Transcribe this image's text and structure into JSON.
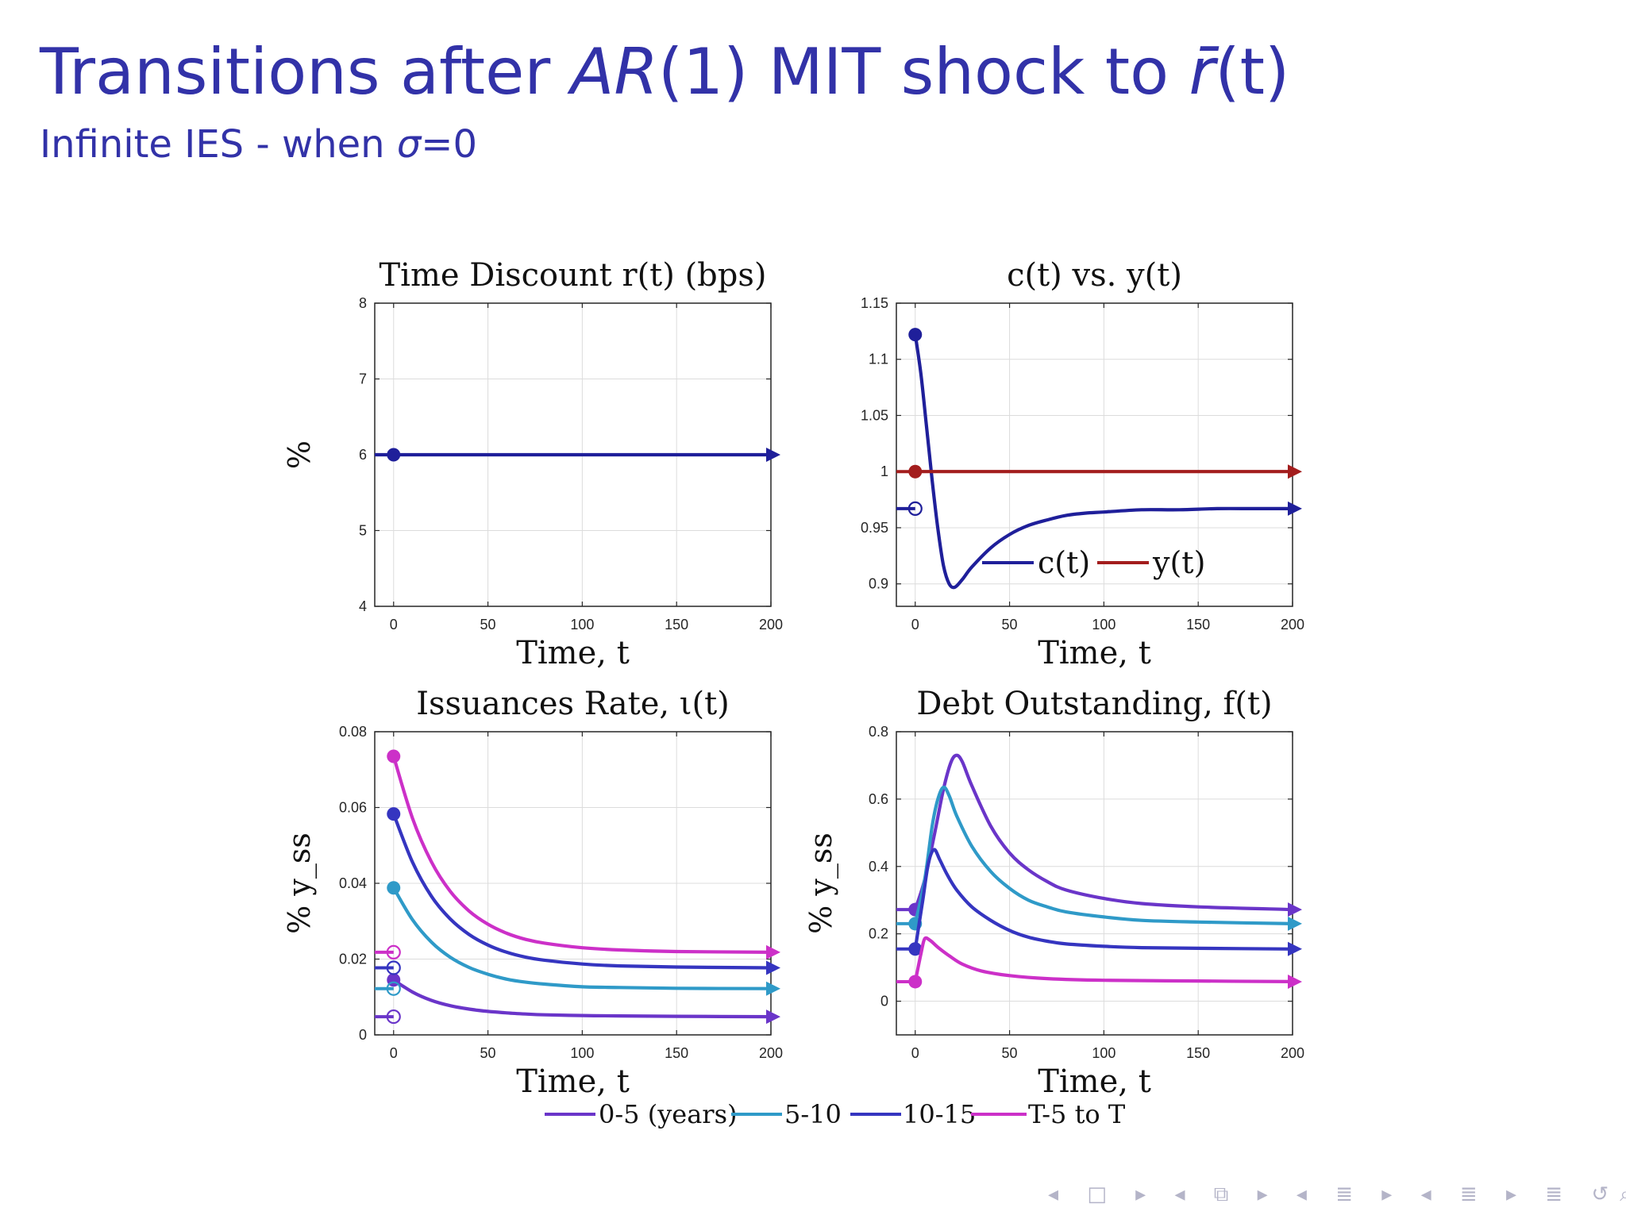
{
  "slide": {
    "title_pre": "Transitions after ",
    "title_ar": "AR",
    "title_mid": "(1) MIT shock to ",
    "title_r": "r̄",
    "title_t": "(t)",
    "subtitle_pre": "Infinite IES - when ",
    "subtitle_sigma": "σ",
    "subtitle_post": "=0",
    "nav_symbols": "◂ □ ▸ ◂ ⧉ ▸ ◂ ≣ ▸ ◂ ≣ ▸  ≣  ↺⌕↻"
  },
  "colors": {
    "title": "#3232a8",
    "navy": "#1f1f9a",
    "red": "#a31d1d",
    "purple": "#6a35c9",
    "cyan": "#2f9ac8",
    "blue": "#3535c0",
    "magenta": "#cc30c8",
    "grid": "#dcdcdc"
  },
  "chart_data": [
    {
      "type": "line",
      "title": "Time Discount r(t) (bps)",
      "xlabel": "Time, t",
      "ylabel": "%",
      "xlim": [
        -10,
        200
      ],
      "ylim": [
        4,
        8
      ],
      "xticks": [
        0,
        50,
        100,
        150,
        200
      ],
      "yticks": [
        4,
        5,
        6,
        7,
        8
      ],
      "grid": true,
      "series": [
        {
          "color_key": "navy",
          "x": [
            -10,
            200
          ],
          "y": [
            6,
            6
          ],
          "start_point": [
            0,
            6
          ],
          "pre_value": 6
        }
      ]
    },
    {
      "type": "line",
      "title": "c(t) vs. y(t)",
      "xlabel": "Time, t",
      "ylabel": "",
      "xlim": [
        -10,
        200
      ],
      "ylim": [
        0.88,
        1.15
      ],
      "xticks": [
        0,
        50,
        100,
        150,
        200
      ],
      "yticks": [
        0.9,
        0.95,
        1,
        1.05,
        1.1,
        1.15
      ],
      "grid": true,
      "legend": {
        "placement": "bottom-right",
        "entries": [
          "c(t)",
          "y(t)"
        ]
      },
      "series": [
        {
          "name": "c(t)",
          "color_key": "navy",
          "pre_value": 0.967,
          "start_point": [
            0,
            1.122
          ],
          "x": [
            0,
            3,
            6,
            9,
            12,
            15,
            18,
            21,
            25,
            30,
            40,
            50,
            60,
            70,
            80,
            90,
            100,
            120,
            140,
            160,
            180,
            200
          ],
          "y": [
            1.122,
            1.087,
            1.04,
            0.992,
            0.949,
            0.916,
            0.9,
            0.897,
            0.904,
            0.915,
            0.932,
            0.944,
            0.952,
            0.957,
            0.961,
            0.963,
            0.964,
            0.966,
            0.966,
            0.967,
            0.967,
            0.967
          ]
        },
        {
          "name": "y(t)",
          "color_key": "red",
          "pre_value": 1,
          "start_point": [
            0,
            1
          ],
          "x": [
            0,
            200
          ],
          "y": [
            1,
            1
          ]
        }
      ]
    },
    {
      "type": "line",
      "title": "Issuances Rate, ι(t)",
      "xlabel": "Time, t",
      "ylabel": "% y_ss",
      "xlim": [
        -10,
        200
      ],
      "ylim": [
        0,
        0.08
      ],
      "xticks": [
        0,
        50,
        100,
        150,
        200
      ],
      "yticks": [
        0,
        0.02,
        0.04,
        0.06,
        0.08
      ],
      "grid": true,
      "series": [
        {
          "name": "0-5 (years)",
          "color_key": "purple",
          "pre_value": 0.0048,
          "start_point": [
            0,
            0.0145
          ],
          "x": [
            0,
            10,
            20,
            30,
            40,
            50,
            60,
            70,
            80,
            100,
            120,
            150,
            200
          ],
          "y": [
            0.0145,
            0.0113,
            0.0091,
            0.0077,
            0.0068,
            0.0062,
            0.0058,
            0.0055,
            0.0053,
            0.0051,
            0.005,
            0.0049,
            0.0048
          ]
        },
        {
          "name": "5-10",
          "color_key": "cyan",
          "pre_value": 0.0122,
          "start_point": [
            0,
            0.0388
          ],
          "x": [
            0,
            10,
            20,
            30,
            40,
            50,
            60,
            70,
            80,
            100,
            120,
            150,
            200
          ],
          "y": [
            0.0388,
            0.0304,
            0.0245,
            0.0205,
            0.0178,
            0.016,
            0.0147,
            0.0139,
            0.0134,
            0.0127,
            0.0125,
            0.0123,
            0.0122
          ]
        },
        {
          "name": "10-15",
          "color_key": "blue",
          "pre_value": 0.0177,
          "start_point": [
            0,
            0.0583
          ],
          "x": [
            0,
            10,
            20,
            30,
            40,
            50,
            60,
            70,
            80,
            100,
            120,
            150,
            200
          ],
          "y": [
            0.0583,
            0.0456,
            0.0366,
            0.0306,
            0.0265,
            0.0237,
            0.0218,
            0.0205,
            0.0197,
            0.0187,
            0.0182,
            0.0179,
            0.0177
          ]
        },
        {
          "name": "T-5 to T",
          "color_key": "magenta",
          "pre_value": 0.0218,
          "start_point": [
            0,
            0.0735
          ],
          "x": [
            0,
            10,
            20,
            30,
            40,
            50,
            60,
            70,
            80,
            100,
            120,
            150,
            200
          ],
          "y": [
            0.0735,
            0.0572,
            0.0457,
            0.0379,
            0.0327,
            0.0292,
            0.0268,
            0.0252,
            0.0242,
            0.023,
            0.0224,
            0.022,
            0.0218
          ]
        }
      ]
    },
    {
      "type": "line",
      "title": "Debt Outstanding, f(t)",
      "xlabel": "Time, t",
      "ylabel": "% y_ss",
      "xlim": [
        -10,
        200
      ],
      "ylim": [
        -0.1,
        0.8
      ],
      "xticks": [
        0,
        50,
        100,
        150,
        200
      ],
      "yticks": [
        0,
        0.2,
        0.4,
        0.6,
        0.8
      ],
      "grid": true,
      "series": [
        {
          "name": "0-5 (years)",
          "color_key": "purple",
          "pre_value": 0.272,
          "start_point": [
            0,
            0.272
          ],
          "x": [
            0,
            5,
            10,
            15,
            19,
            22,
            25,
            30,
            40,
            50,
            60,
            70,
            80,
            100,
            120,
            150,
            200
          ],
          "y": [
            0.272,
            0.36,
            0.49,
            0.63,
            0.71,
            0.73,
            0.71,
            0.64,
            0.52,
            0.44,
            0.39,
            0.355,
            0.33,
            0.305,
            0.29,
            0.28,
            0.272
          ]
        },
        {
          "name": "5-10",
          "color_key": "cyan",
          "pre_value": 0.23,
          "start_point": [
            0,
            0.23
          ],
          "x": [
            0,
            5,
            9,
            12,
            15,
            18,
            22,
            30,
            40,
            50,
            60,
            70,
            80,
            100,
            120,
            150,
            200
          ],
          "y": [
            0.23,
            0.36,
            0.52,
            0.6,
            0.635,
            0.61,
            0.55,
            0.46,
            0.385,
            0.335,
            0.3,
            0.28,
            0.265,
            0.25,
            0.24,
            0.235,
            0.23
          ]
        },
        {
          "name": "10-15",
          "color_key": "blue",
          "pre_value": 0.155,
          "start_point": [
            0,
            0.155
          ],
          "x": [
            0,
            4,
            7,
            10,
            13,
            17,
            22,
            30,
            40,
            50,
            60,
            70,
            80,
            100,
            120,
            150,
            200
          ],
          "y": [
            0.155,
            0.3,
            0.41,
            0.45,
            0.42,
            0.375,
            0.33,
            0.28,
            0.24,
            0.21,
            0.19,
            0.178,
            0.17,
            0.163,
            0.159,
            0.157,
            0.155
          ]
        },
        {
          "name": "T-5 to T",
          "color_key": "magenta",
          "pre_value": 0.058,
          "start_point": [
            0,
            0.058
          ],
          "x": [
            0,
            3,
            5,
            8,
            12,
            18,
            25,
            35,
            50,
            70,
            100,
            150,
            200
          ],
          "y": [
            0.058,
            0.14,
            0.185,
            0.18,
            0.16,
            0.135,
            0.11,
            0.09,
            0.076,
            0.067,
            0.062,
            0.06,
            0.058
          ]
        }
      ]
    }
  ],
  "shared_legend": {
    "placement": "bottom-center",
    "entries": [
      {
        "label": "0-5 (years)",
        "color_key": "purple"
      },
      {
        "label": "5-10",
        "color_key": "cyan"
      },
      {
        "label": "10-15",
        "color_key": "blue"
      },
      {
        "label": "T-5 to T",
        "color_key": "magenta"
      }
    ]
  }
}
